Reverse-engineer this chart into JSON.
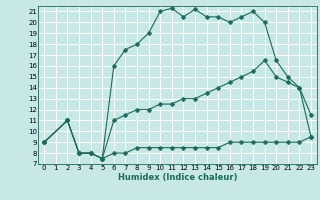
{
  "xlabel": "Humidex (Indice chaleur)",
  "bg_color": "#c8e8e8",
  "grid_color": "#ffffff",
  "line_color": "#1a6b5a",
  "xlim": [
    -0.5,
    23.5
  ],
  "ylim": [
    7,
    21.5
  ],
  "xticks": [
    0,
    1,
    2,
    3,
    4,
    5,
    6,
    7,
    8,
    9,
    10,
    11,
    12,
    13,
    14,
    15,
    16,
    17,
    18,
    19,
    20,
    21,
    22,
    23
  ],
  "yticks": [
    7,
    8,
    9,
    10,
    11,
    12,
    13,
    14,
    15,
    16,
    17,
    18,
    19,
    20,
    21
  ],
  "line1_x": [
    0,
    2,
    3,
    4,
    5,
    6,
    7,
    8,
    9,
    10,
    11,
    12,
    13,
    14,
    15,
    16,
    17,
    18,
    19,
    20,
    21,
    22,
    23
  ],
  "line1_y": [
    9,
    11,
    8,
    8,
    7.5,
    8,
    8,
    8.5,
    8.5,
    8.5,
    8.5,
    8.5,
    8.5,
    8.5,
    8.5,
    9,
    9,
    9,
    9,
    9,
    9,
    9,
    9.5
  ],
  "line2_x": [
    0,
    2,
    3,
    4,
    5,
    6,
    7,
    8,
    9,
    10,
    11,
    12,
    13,
    14,
    15,
    16,
    17,
    18,
    19,
    20,
    21,
    22,
    23
  ],
  "line2_y": [
    9,
    11,
    8,
    8,
    7.5,
    11,
    11.5,
    12,
    12,
    12.5,
    12.5,
    13,
    13,
    13.5,
    14,
    14.5,
    15,
    15.5,
    16.5,
    15,
    14.5,
    14,
    11.5
  ],
  "line3_x": [
    0,
    2,
    3,
    4,
    5,
    6,
    7,
    8,
    9,
    10,
    11,
    12,
    13,
    14,
    15,
    16,
    17,
    18,
    19,
    20,
    21,
    22,
    23
  ],
  "line3_y": [
    9,
    11,
    8,
    8,
    7.5,
    16,
    17.5,
    18,
    19,
    21,
    21.3,
    20.5,
    21.2,
    20.5,
    20.5,
    20,
    20.5,
    21,
    20,
    16.5,
    15,
    14,
    9.5
  ],
  "marker": "D",
  "markersize": 2.5
}
